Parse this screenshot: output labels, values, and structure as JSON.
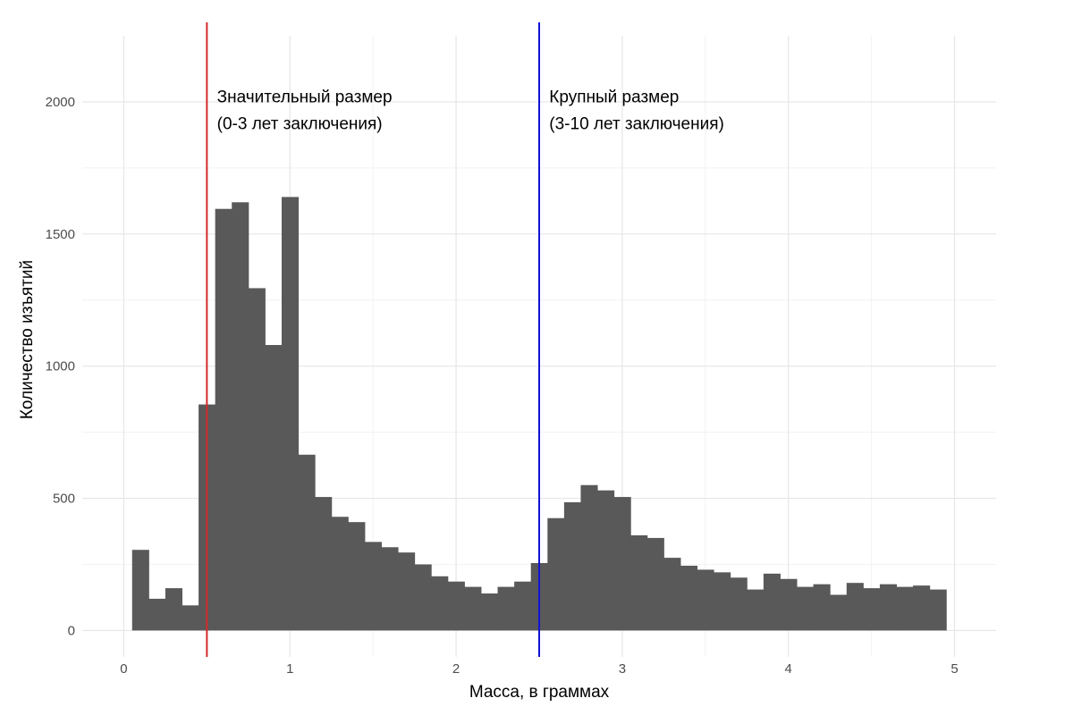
{
  "chart_data": {
    "type": "bar",
    "subtype": "histogram",
    "xlabel": "Масса, в граммах",
    "ylabel": "Количество изъятий",
    "xlim": [
      -0.25,
      5.25
    ],
    "ylim": [
      -100,
      2250
    ],
    "x_ticks": [
      0,
      1,
      2,
      3,
      4,
      5
    ],
    "x_tick_labels": [
      "0",
      "1",
      "2",
      "3",
      "4",
      "5"
    ],
    "y_ticks": [
      0,
      500,
      1000,
      1500,
      2000
    ],
    "y_tick_labels": [
      "0",
      "500",
      "1000",
      "1500",
      "2000"
    ],
    "grid": true,
    "bin_width": 0.1,
    "bins_x": [
      0.1,
      0.2,
      0.3,
      0.4,
      0.5,
      0.6,
      0.7,
      0.8,
      0.9,
      1.0,
      1.1,
      1.2,
      1.3,
      1.4,
      1.5,
      1.6,
      1.7,
      1.8,
      1.9,
      2.0,
      2.1,
      2.2,
      2.3,
      2.4,
      2.5,
      2.6,
      2.7,
      2.8,
      2.9,
      3.0,
      3.1,
      3.2,
      3.3,
      3.4,
      3.5,
      3.6,
      3.7,
      3.8,
      3.9,
      4.0,
      4.1,
      4.2,
      4.3,
      4.4,
      4.5,
      4.6,
      4.7,
      4.8,
      4.9
    ],
    "values": [
      305,
      120,
      160,
      95,
      855,
      1595,
      1620,
      1295,
      1080,
      1640,
      665,
      505,
      430,
      410,
      335,
      315,
      295,
      250,
      205,
      185,
      165,
      140,
      165,
      185,
      255,
      425,
      485,
      550,
      530,
      505,
      360,
      350,
      275,
      245,
      230,
      220,
      200,
      155,
      215,
      195,
      165,
      175,
      135,
      180,
      160,
      175,
      165,
      170,
      155
    ],
    "bar_color": "#595959",
    "vlines": [
      {
        "x": 0.5,
        "color": "#d32b2b"
      },
      {
        "x": 2.5,
        "color": "#1212d6"
      }
    ],
    "annotations": [
      {
        "x": 0.55,
        "y": 2025,
        "lines": [
          "Значительный размер",
          "(0-3 лет заключения)"
        ]
      },
      {
        "x": 2.55,
        "y": 2025,
        "lines": [
          "Крупный размер",
          "(3-10 лет заключения)"
        ]
      }
    ]
  }
}
